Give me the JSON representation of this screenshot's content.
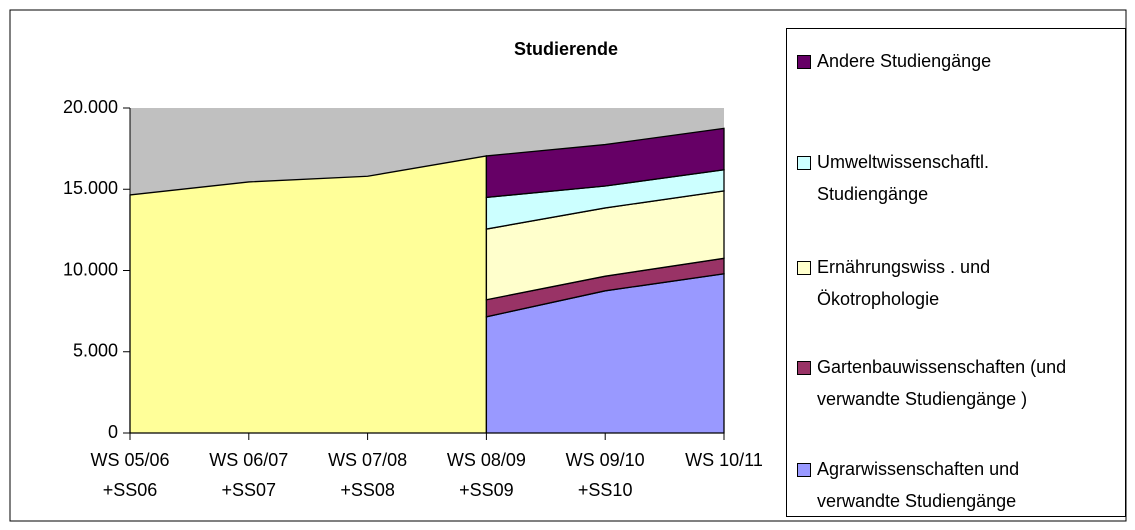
{
  "chart_data": {
    "type": "area",
    "title": "Studierende",
    "categories": [
      "WS 05/06 +SS06",
      "WS 06/07 +SS07",
      "WS 07/08 +SS08",
      "WS 08/09 +SS09",
      "WS 09/10 +SS10",
      "WS 10/11"
    ],
    "series": [
      {
        "color": "#ffff99",
        "values": [
          14650,
          15450,
          15800,
          17050,
          null,
          null
        ]
      },
      {
        "name": "Agrarwissenschaften und verwandte Studiengänge",
        "color": "#9999ff",
        "values": [
          null,
          null,
          null,
          7150,
          8750,
          9800
        ]
      },
      {
        "name": "Gartenbauwissenschaften (und verwandte Studiengänge )",
        "color": "#993366",
        "values": [
          null,
          null,
          null,
          1050,
          900,
          950
        ]
      },
      {
        "name": "Ernährungswiss . und Ökotrophologie",
        "color": "#ffffcc",
        "values": [
          null,
          null,
          null,
          4350,
          4200,
          4150
        ]
      },
      {
        "name": "Umweltwissenschaftl. Studiengänge",
        "color": "#ccffff",
        "values": [
          null,
          null,
          null,
          1950,
          1350,
          1300
        ]
      },
      {
        "name": "Andere Studiengänge",
        "color": "#660066",
        "values": [
          null,
          null,
          null,
          2550,
          2550,
          2550
        ]
      }
    ],
    "ylim": [
      0,
      20000
    ],
    "yticks": [
      0,
      {
        "value": 5000,
        "label": "5.000"
      },
      {
        "value": 10000,
        "label": "10.000"
      },
      {
        "value": 15000,
        "label": "15.000"
      },
      {
        "value": 20000,
        "label": "20.000"
      }
    ],
    "plot_background": "#c0c0c0",
    "legend": "right"
  }
}
